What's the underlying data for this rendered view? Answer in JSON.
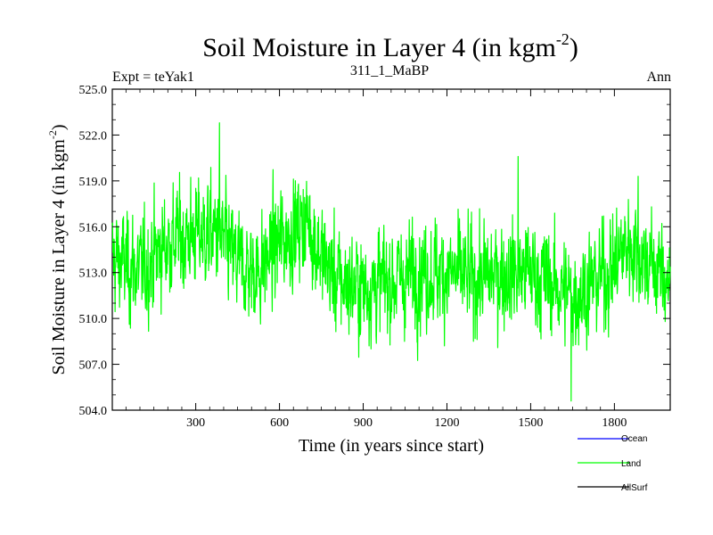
{
  "chart_data": {
    "type": "line",
    "title": "Soil Moisture in Layer 4 (in kgm",
    "title_sup": "-2",
    "title_close": ")",
    "subtitle_left": "Expt = teYak1",
    "subtitle_center": "311_1_MaBP",
    "subtitle_right": "Ann",
    "xlabel": "Time (in years since start)",
    "ylabel": "Soil Moisture in Layer 4 (in kgm",
    "ylabel_sup": "-2",
    "ylabel_close": ")",
    "xlim": [
      1,
      2000
    ],
    "ylim": [
      504.0,
      525.0
    ],
    "xticks": [
      300,
      600,
      900,
      1200,
      1500,
      1800
    ],
    "xtick_labels": [
      "300",
      "600",
      "900",
      "1200",
      "1500",
      "1800"
    ],
    "yticks": [
      504.0,
      507.0,
      510.0,
      513.0,
      516.0,
      519.0,
      522.0,
      525.0
    ],
    "ytick_labels": [
      "504.0",
      "507.0",
      "510.0",
      "513.0",
      "516.0",
      "519.0",
      "522.0",
      "525.0"
    ],
    "legend": [
      {
        "name": "Ocean",
        "color": "#0000ff"
      },
      {
        "name": "Land",
        "color": "#00ff00"
      },
      {
        "name": "AllSurf",
        "color": "#000000"
      }
    ],
    "series": [
      {
        "name": "Land",
        "color": "#00ff00",
        "noise_std": 1.7,
        "mean_curve": {
          "x": [
            1,
            100,
            200,
            300,
            380,
            450,
            520,
            600,
            700,
            750,
            800,
            900,
            1000,
            1100,
            1200,
            1300,
            1400,
            1500,
            1600,
            1650,
            1700,
            1800,
            1850,
            1900,
            2000
          ],
          "y": [
            514.0,
            513.0,
            515.0,
            515.5,
            515.5,
            513.5,
            513.0,
            515.0,
            516.5,
            514.0,
            512.5,
            512.0,
            512.5,
            513.0,
            513.0,
            512.5,
            513.0,
            513.0,
            512.0,
            511.5,
            512.0,
            513.5,
            515.0,
            514.0,
            512.5
          ]
        },
        "annotated_extremes": [
          {
            "x": 385,
            "y": 522.8
          },
          {
            "x": 1645,
            "y": 504.6
          },
          {
            "x": 1455,
            "y": 520.6
          },
          {
            "x": 1885,
            "y": 519.3
          }
        ]
      }
    ]
  }
}
